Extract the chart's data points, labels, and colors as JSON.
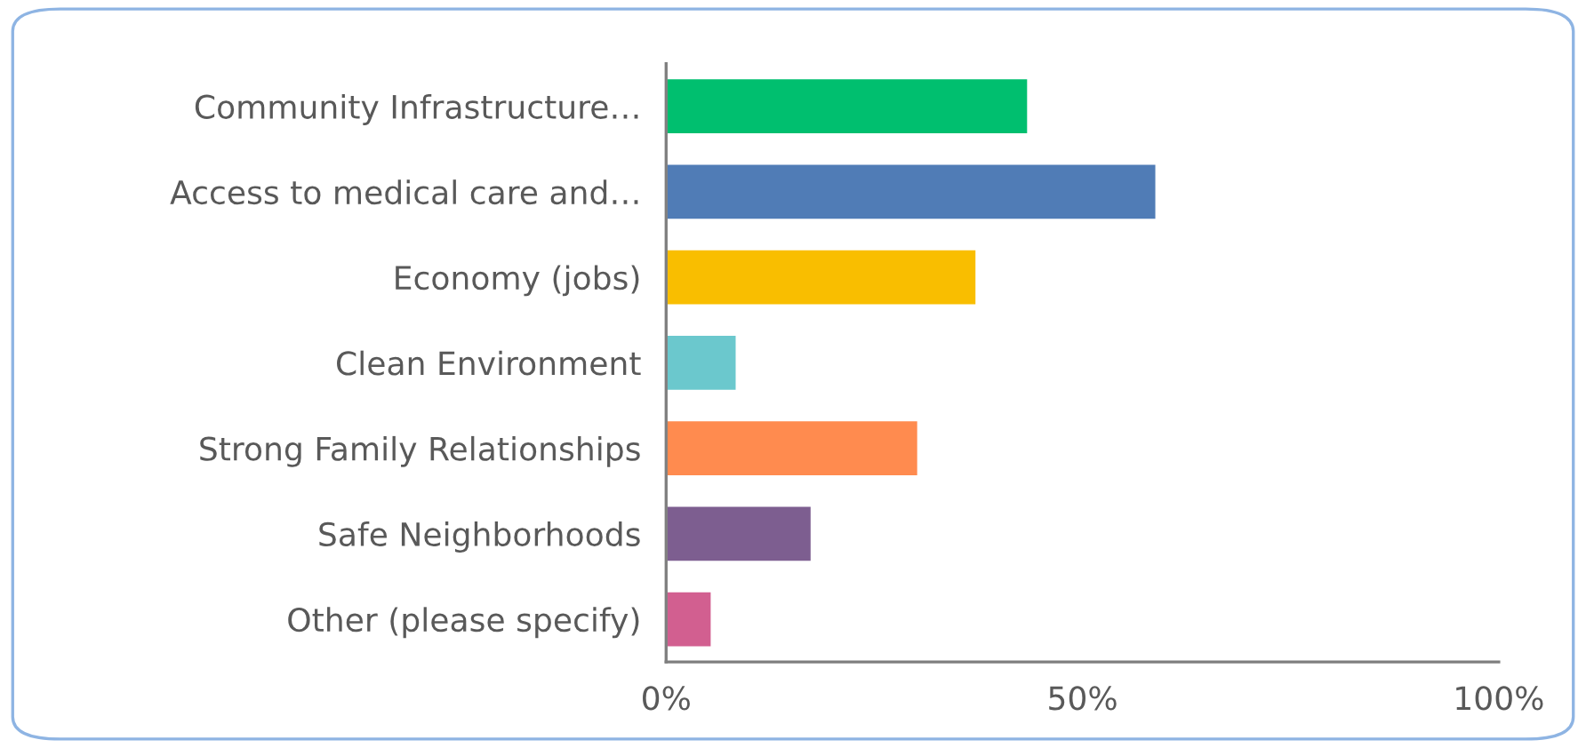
{
  "chart_data": {
    "type": "bar",
    "orientation": "horizontal",
    "categories": [
      "Community Infrastructure…",
      "Access to medical care and…",
      "Economy (jobs)",
      "Clean Environment",
      "Strong Family Relationships",
      "Safe Neighborhoods",
      "Other (please specify)"
    ],
    "values": [
      43.5,
      58.9,
      37.3,
      8.5,
      30.3,
      17.5,
      5.5
    ],
    "colors": [
      "#00bf6f",
      "#507cb6",
      "#f9be00",
      "#6bc8cd",
      "#ff8b4f",
      "#7d5e90",
      "#d25f90"
    ],
    "xlim": [
      0,
      100
    ],
    "xticks": [
      {
        "value": 0,
        "label": "0%"
      },
      {
        "value": 50,
        "label": "50%"
      },
      {
        "value": 100,
        "label": "100%"
      }
    ],
    "grid": false,
    "legend": false
  }
}
